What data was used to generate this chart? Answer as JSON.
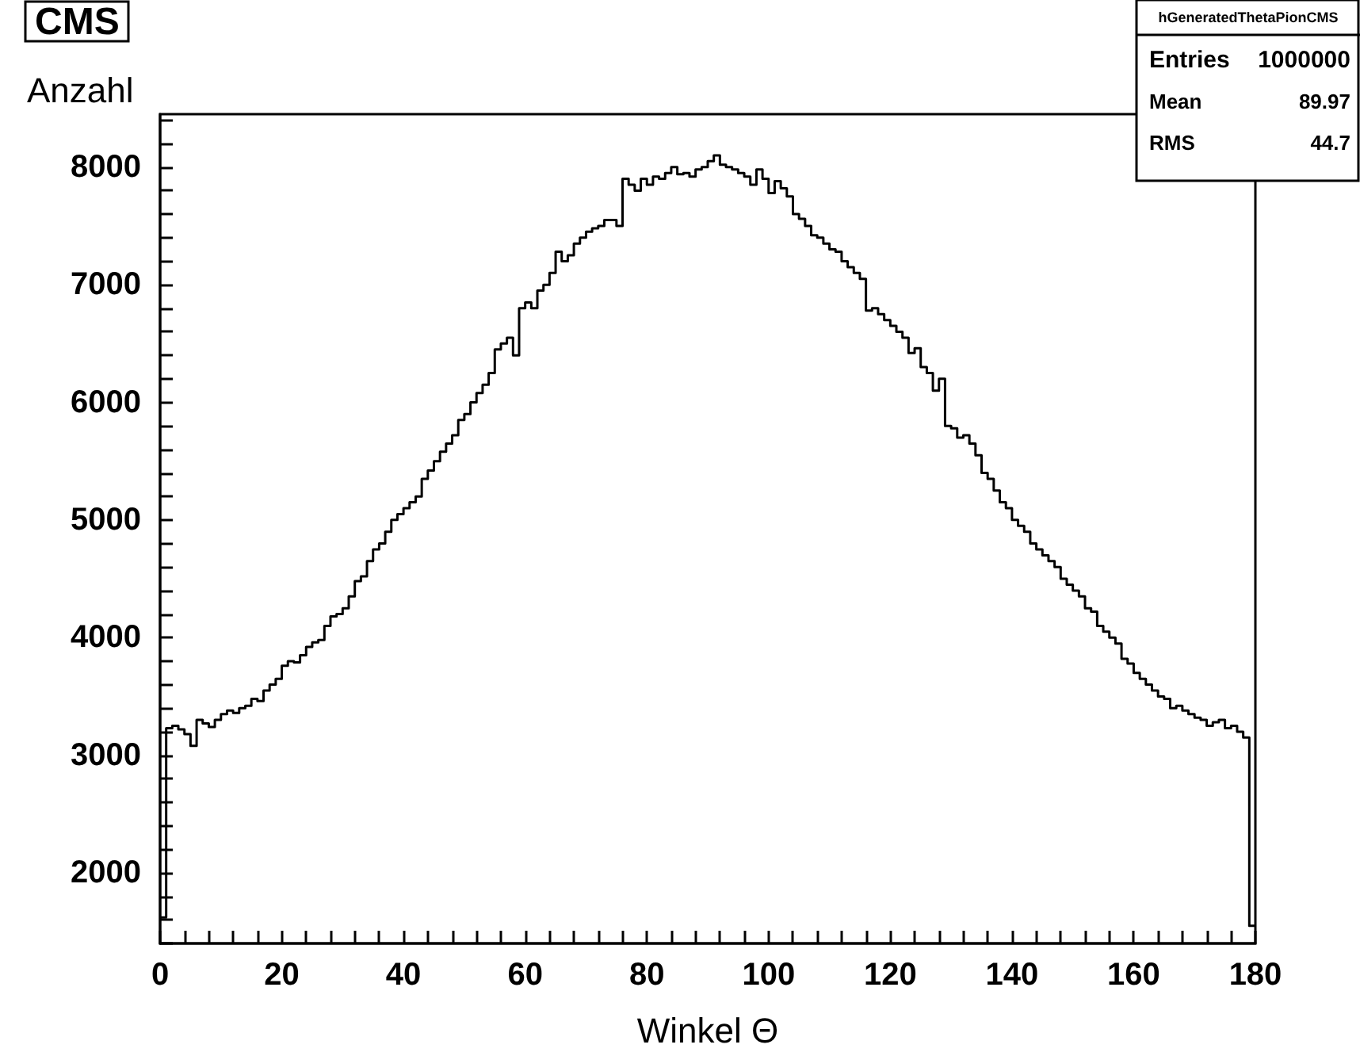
{
  "chart_data": {
    "type": "histogram",
    "title": "CMS",
    "xlabel": "Winkel Θ",
    "ylabel": "Anzahl",
    "color": "#000000",
    "annotations": [
      "hGeneratedThetaPionCMS",
      "Entries",
      "1000000",
      "Mean",
      "89.97",
      "RMS",
      "44.7"
    ],
    "bins": [
      0,
      1,
      2,
      3,
      4,
      5,
      6,
      7,
      8,
      9,
      10,
      11,
      12,
      13,
      14,
      15,
      16,
      17,
      18,
      19,
      20,
      21,
      22,
      23,
      24,
      25,
      26,
      27,
      28,
      29,
      30,
      31,
      32,
      33,
      34,
      35,
      36,
      37,
      38,
      39,
      40,
      41,
      42,
      43,
      44,
      45,
      46,
      47,
      48,
      49,
      50,
      51,
      52,
      53,
      54,
      55,
      56,
      57,
      58,
      59,
      60,
      61,
      62,
      63,
      64,
      65,
      66,
      67,
      68,
      69,
      70,
      71,
      72,
      73,
      74,
      75,
      76,
      77,
      78,
      79,
      80,
      81,
      82,
      83,
      84,
      85,
      86,
      87,
      88,
      89,
      90,
      91,
      92,
      93,
      94,
      95,
      96,
      97,
      98,
      99,
      100,
      101,
      102,
      103,
      104,
      105,
      106,
      107,
      108,
      109,
      110,
      111,
      112,
      113,
      114,
      115,
      116,
      117,
      118,
      119,
      120,
      121,
      122,
      123,
      124,
      125,
      126,
      127,
      128,
      129,
      130,
      131,
      132,
      133,
      134,
      135,
      136,
      137,
      138,
      139,
      140,
      141,
      142,
      143,
      144,
      145,
      146,
      147,
      148,
      149,
      150,
      151,
      152,
      153,
      154,
      155,
      156,
      157,
      158,
      159,
      160,
      161,
      162,
      163,
      164,
      165,
      166,
      167,
      168,
      169,
      170,
      171,
      172,
      173,
      174,
      175,
      176,
      177,
      178,
      179,
      180
    ],
    "values": [
      1620,
      3230,
      3250,
      3220,
      3180,
      3080,
      3300,
      3270,
      3240,
      3300,
      3350,
      3380,
      3360,
      3400,
      3420,
      3480,
      3460,
      3550,
      3600,
      3650,
      3760,
      3800,
      3790,
      3850,
      3920,
      3960,
      3980,
      4100,
      4180,
      4200,
      4250,
      4350,
      4480,
      4520,
      4650,
      4750,
      4800,
      4900,
      5000,
      5050,
      5100,
      5150,
      5200,
      5350,
      5420,
      5500,
      5580,
      5650,
      5720,
      5850,
      5900,
      6000,
      6080,
      6150,
      6250,
      6450,
      6500,
      6550,
      6400,
      6800,
      6850,
      6800,
      6950,
      7000,
      7100,
      7280,
      7200,
      7250,
      7350,
      7400,
      7450,
      7480,
      7500,
      7550,
      7550,
      7500,
      7900,
      7850,
      7800,
      7900,
      7850,
      7920,
      7900,
      7950,
      8000,
      7940,
      7950,
      7920,
      7980,
      8000,
      8050,
      8100,
      8020,
      8000,
      7980,
      7950,
      7920,
      7850,
      7980,
      7900,
      7780,
      7880,
      7820,
      7750,
      7600,
      7560,
      7500,
      7420,
      7400,
      7350,
      7300,
      7280,
      7200,
      7150,
      7100,
      7050,
      6780,
      6800,
      6750,
      6700,
      6650,
      6600,
      6550,
      6420,
      6460,
      6300,
      6250,
      6100,
      6200,
      5800,
      5780,
      5700,
      5720,
      5650,
      5550,
      5400,
      5350,
      5250,
      5150,
      5100,
      5000,
      4950,
      4900,
      4800,
      4750,
      4700,
      4650,
      4600,
      4500,
      4450,
      4400,
      4350,
      4250,
      4220,
      4100,
      4050,
      4000,
      3950,
      3820,
      3780,
      3700,
      3650,
      3600,
      3550,
      3500,
      3480,
      3400,
      3420,
      3380,
      3350,
      3320,
      3300,
      3250,
      3280,
      3300,
      3230,
      3250,
      3200,
      3150,
      1550
    ],
    "xlim": [
      0,
      180
    ],
    "xticks": [
      0,
      {
        "value": 4,
        "label": null
      },
      {
        "value": 8,
        "label": null
      },
      {
        "value": 12,
        "label": null
      },
      {
        "value": 16,
        "label": null
      },
      20,
      {
        "value": 24,
        "label": null
      },
      {
        "value": 28,
        "label": null
      },
      {
        "value": 32,
        "label": null
      },
      {
        "value": 36,
        "label": null
      },
      40,
      {
        "value": 44,
        "label": null
      },
      {
        "value": 48,
        "label": null
      },
      {
        "value": 52,
        "label": null
      },
      {
        "value": 56,
        "label": null
      },
      60,
      {
        "value": 64,
        "label": null
      },
      {
        "value": 68,
        "label": null
      },
      {
        "value": 72,
        "label": null
      },
      {
        "value": 76,
        "label": null
      },
      80,
      {
        "value": 84,
        "label": null
      },
      {
        "value": 88,
        "label": null
      },
      {
        "value": 92,
        "label": null
      },
      {
        "value": 96,
        "label": null
      },
      100,
      {
        "value": 104,
        "label": null
      },
      {
        "value": 108,
        "label": null
      },
      {
        "value": 112,
        "label": null
      },
      {
        "value": 116,
        "label": null
      },
      120,
      {
        "value": 124,
        "label": null
      },
      {
        "value": 128,
        "label": null
      },
      {
        "value": 132,
        "label": null
      },
      {
        "value": 136,
        "label": null
      },
      140,
      {
        "value": 144,
        "label": null
      },
      {
        "value": 148,
        "label": null
      },
      {
        "value": 152,
        "label": null
      },
      {
        "value": 156,
        "label": null
      },
      160,
      {
        "value": 164,
        "label": null
      },
      {
        "value": 168,
        "label": null
      },
      {
        "value": 172,
        "label": null
      },
      {
        "value": 176,
        "label": null
      },
      180
    ],
    "ylim": [
      1400,
      8450
    ],
    "yticks": [
      {
        "value": 1400,
        "label": null
      },
      {
        "value": 1600,
        "label": null
      },
      {
        "value": 1800,
        "label": null
      },
      2000,
      {
        "value": 2200,
        "label": null
      },
      {
        "value": 2400,
        "label": null
      },
      {
        "value": 2600,
        "label": null
      },
      {
        "value": 2800,
        "label": null
      },
      3000,
      {
        "value": 3200,
        "label": null
      },
      {
        "value": 3400,
        "label": null
      },
      {
        "value": 3600,
        "label": null
      },
      {
        "value": 3800,
        "label": null
      },
      4000,
      {
        "value": 4200,
        "label": null
      },
      {
        "value": 4400,
        "label": null
      },
      {
        "value": 4600,
        "label": null
      },
      {
        "value": 4800,
        "label": null
      },
      5000,
      {
        "value": 5200,
        "label": null
      },
      {
        "value": 5400,
        "label": null
      },
      {
        "value": 5600,
        "label": null
      },
      {
        "value": 5800,
        "label": null
      },
      6000,
      {
        "value": 6200,
        "label": null
      },
      {
        "value": 6400,
        "label": null
      },
      {
        "value": 6600,
        "label": null
      },
      {
        "value": 6800,
        "label": null
      },
      7000,
      {
        "value": 7200,
        "label": null
      },
      {
        "value": 7400,
        "label": null
      },
      {
        "value": 7600,
        "label": null
      },
      {
        "value": 7800,
        "label": null
      },
      8000,
      {
        "value": 8200,
        "label": null
      },
      {
        "value": 8400,
        "label": null
      }
    ],
    "grid": false
  }
}
